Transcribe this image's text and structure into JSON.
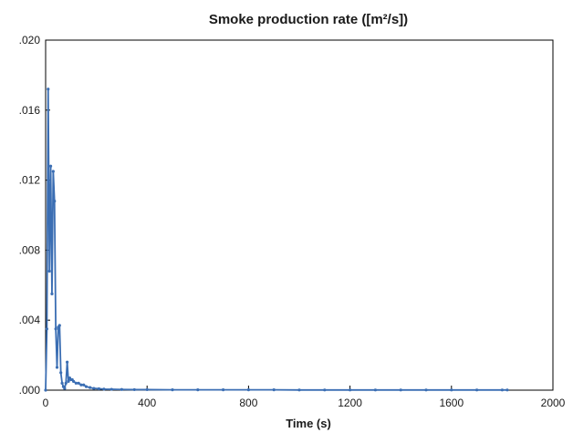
{
  "chart_data": {
    "type": "line",
    "title": "Smoke production rate ([m²/s])",
    "xlabel": "Time (s)",
    "ylabel": "",
    "xlim": [
      0,
      2000
    ],
    "ylim": [
      0,
      0.02
    ],
    "x_ticks": [
      "0",
      "400",
      "800",
      "1200",
      "1600",
      "2000"
    ],
    "y_ticks": [
      ".000",
      ".004",
      ".008",
      ".012",
      ".016",
      ".020"
    ],
    "grid": false,
    "series_color": "#3b6eb3",
    "series": [
      {
        "x": [
          0,
          5,
          10,
          15,
          20,
          25,
          30,
          35,
          40,
          45,
          50,
          55,
          60,
          65,
          70,
          75,
          80,
          85,
          90,
          95,
          100,
          105,
          110,
          120,
          130,
          140,
          150,
          160,
          175,
          190,
          210,
          230,
          260,
          300,
          350,
          400,
          500,
          600,
          700,
          800,
          900,
          1000,
          1100,
          1200,
          1300,
          1400,
          1500,
          1600,
          1700,
          1800,
          1820
        ],
        "y": [
          0.0,
          0.0035,
          0.0172,
          0.0068,
          0.0128,
          0.0055,
          0.0125,
          0.0108,
          0.0035,
          0.0013,
          0.0036,
          0.0037,
          0.001,
          0.0004,
          0.0002,
          0.0001,
          0.0004,
          0.0016,
          0.0005,
          0.0007,
          0.0006,
          0.0006,
          0.0005,
          0.0004,
          0.0004,
          0.0003,
          0.0003,
          0.0002,
          0.00015,
          0.0001,
          8e-05,
          6e-05,
          5e-05,
          4e-05,
          3e-05,
          3e-05,
          2e-05,
          2e-05,
          2e-05,
          2e-05,
          2e-05,
          1e-05,
          1e-05,
          1e-05,
          1e-05,
          1e-05,
          1e-05,
          1e-05,
          1e-05,
          1e-05,
          1e-05
        ]
      }
    ]
  }
}
